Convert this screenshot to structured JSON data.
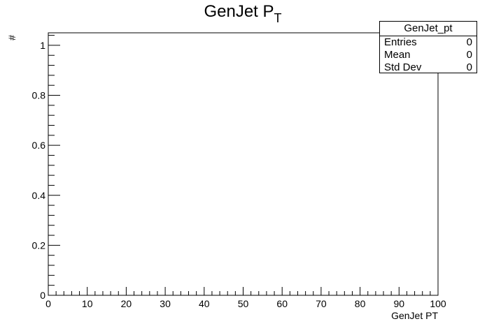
{
  "chart_data": {
    "type": "bar",
    "title": "GenJet P",
    "title_subscript": "T",
    "xlabel": "GenJet PT",
    "ylabel": "#",
    "xlim": [
      0,
      100
    ],
    "ylim": [
      0,
      1.05
    ],
    "x_ticks": [
      "0",
      "10",
      "20",
      "30",
      "40",
      "50",
      "60",
      "70",
      "80",
      "90",
      "100"
    ],
    "y_ticks": [
      "0",
      "0.2",
      "0.4",
      "0.6",
      "0.8",
      "1"
    ],
    "values": [],
    "grid": false,
    "legend": "top-right",
    "stats": {
      "name": "GenJet_pt",
      "rows": [
        {
          "label": "Entries",
          "value": "0"
        },
        {
          "label": "Mean",
          "value": "0"
        },
        {
          "label": "Std Dev",
          "value": "0"
        }
      ]
    }
  }
}
